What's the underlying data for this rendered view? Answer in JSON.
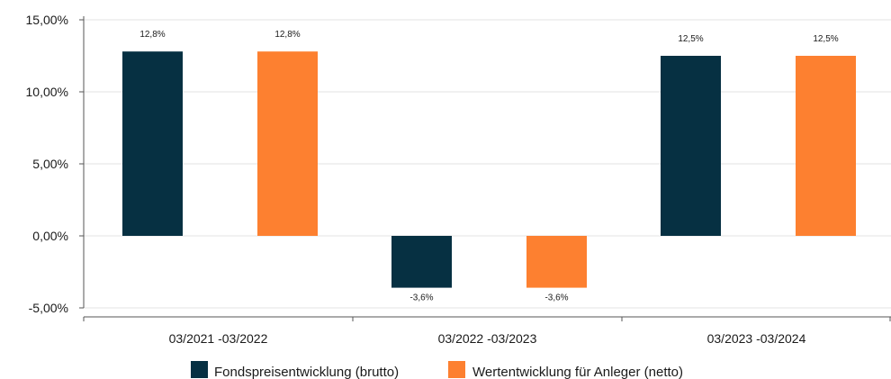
{
  "chart_data": {
    "type": "bar",
    "categories": [
      "03/2021 -03/2022",
      "03/2022 -03/2023",
      "03/2023 -03/2024"
    ],
    "series": [
      {
        "name": "Fondspreisentwicklung (brutto)",
        "color": "#063042",
        "values": [
          12.8,
          -3.6,
          12.5
        ],
        "labels": [
          "12,8%",
          "-3,6%",
          "12,5%"
        ]
      },
      {
        "name": "Wertentwicklung für Anleger (netto)",
        "color": "#fd8030",
        "values": [
          12.8,
          -3.6,
          12.5
        ],
        "labels": [
          "12,8%",
          "-3,6%",
          "12,5%"
        ]
      }
    ],
    "y_ticks": [
      {
        "value": 15,
        "label": "15,00%"
      },
      {
        "value": 10,
        "label": "10,00%"
      },
      {
        "value": 5,
        "label": "5,00%"
      },
      {
        "value": 0,
        "label": "0,00%"
      },
      {
        "value": -5,
        "label": "-5,00%"
      }
    ],
    "ylim": [
      -5,
      15
    ],
    "grid": true,
    "legend_position": "bottom",
    "title": "",
    "xlabel": "",
    "ylabel": ""
  }
}
